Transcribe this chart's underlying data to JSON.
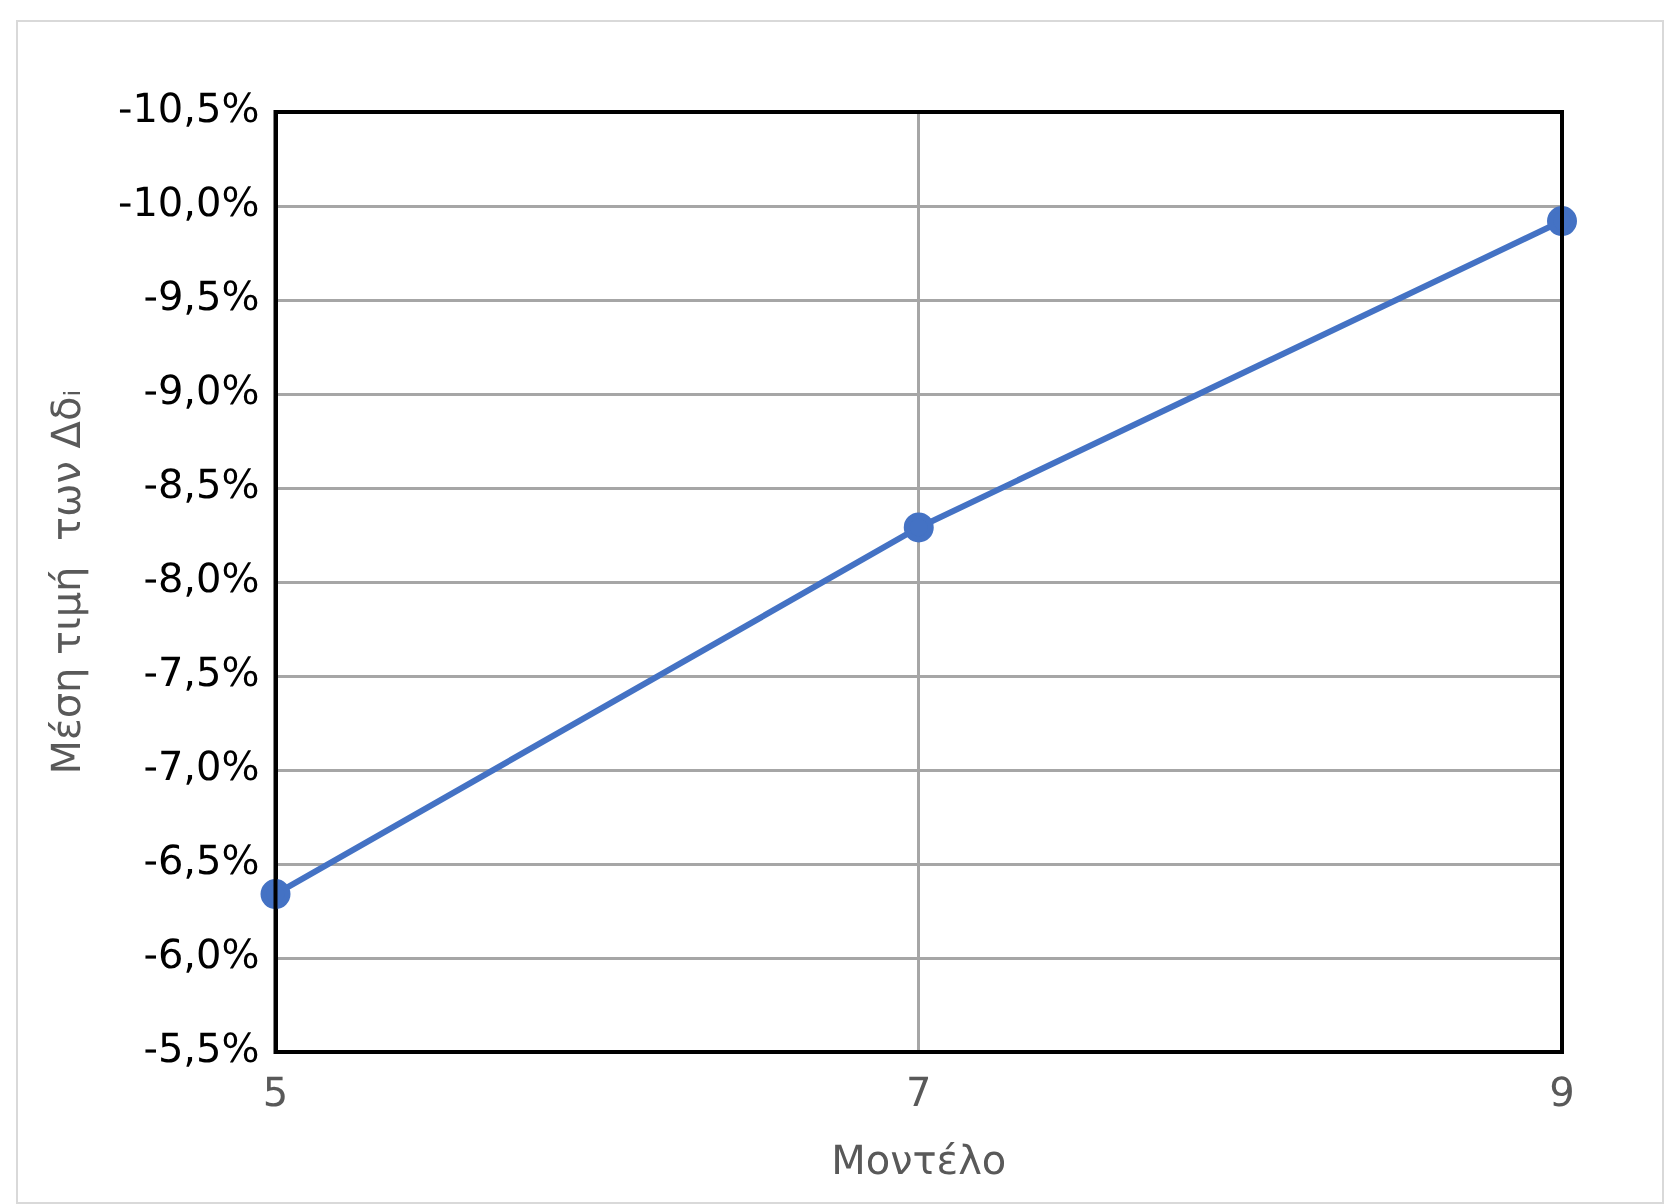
{
  "chart_data": {
    "type": "line",
    "xlabel": "Μοντέλο",
    "ylabel": "Μέση τιμή  των Δδᵢ",
    "x": [
      5,
      7,
      9
    ],
    "series": [
      {
        "color": "#4472c4",
        "values": [
          -6.34,
          -8.29,
          -9.92
        ]
      }
    ],
    "xlim": [
      5,
      9
    ],
    "xticks": [
      5,
      7,
      9
    ],
    "ylim": [
      -5.5,
      -10.5
    ],
    "yticks": [
      {
        "value": -5.5,
        "label": "-5,5%"
      },
      {
        "value": -6,
        "label": "-6,0%"
      },
      {
        "value": -6.5,
        "label": "-6,5%"
      },
      {
        "value": -7,
        "label": "-7,0%"
      },
      {
        "value": -7.5,
        "label": "-7,5%"
      },
      {
        "value": -8,
        "label": "-8,0%"
      },
      {
        "value": -8.5,
        "label": "-8,5%"
      },
      {
        "value": -9,
        "label": "-9,0%"
      },
      {
        "value": -9.5,
        "label": "-9,5%"
      },
      {
        "value": -10,
        "label": "-10,0%"
      },
      {
        "value": -10.5,
        "label": "-10,5%"
      }
    ],
    "grid": true,
    "marker": "circle",
    "line_style": "solid",
    "legend": false
  }
}
